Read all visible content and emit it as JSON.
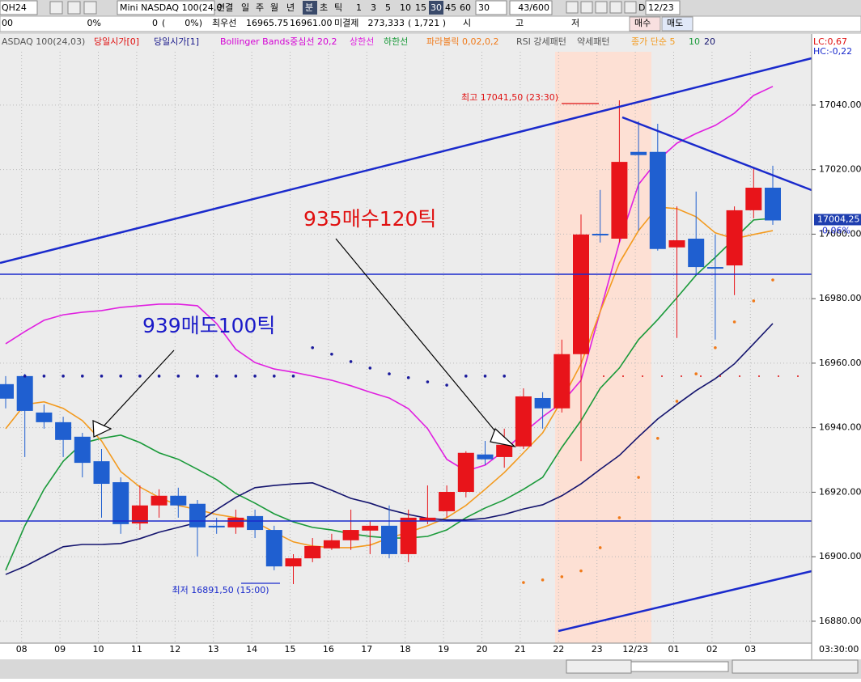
{
  "toolbar": {
    "symbol": "QH24",
    "name": "Mini NASDAQ 100(24.0",
    "periods": [
      "연결",
      "일",
      "주",
      "월",
      "년",
      "분",
      "초",
      "틱"
    ],
    "intervals": [
      "1",
      "3",
      "5",
      "10",
      "15",
      "30",
      "45",
      "60"
    ],
    "interval_input": "30",
    "count": "43/600",
    "d": "D",
    "date": "12/23",
    "quote": {
      "code": "00",
      "pct": "0%",
      "qty": "0",
      "paren": "(",
      "pct2": "0%)",
      "best_label": "최우선",
      "best_ask": "16965.75",
      "best_bid": "16961.00",
      "oi_label": "미결제",
      "oi": "273,333",
      "oi_change": "( 1,721 )",
      "open_label": "시",
      "high_label": "고",
      "low_label": "저",
      "buy": "매수",
      "sell": "매도"
    }
  },
  "chart_data": {
    "type": "candlestick",
    "instrument": "ASDAQ 100(24,03)",
    "legend_extra": [
      {
        "text": "당일시가[0]",
        "color": "#e01010"
      },
      {
        "text": "당일시가[1]",
        "color": "#1a1a8c"
      },
      {
        "text": "Bollinger Bands중심선 20,2",
        "color": "#d400d4"
      },
      {
        "text": "하한선",
        "color": "#1a9a3a"
      },
      {
        "text": "RSI 강세패턴",
        "color": "#555555"
      },
      {
        "text": "약세패턴",
        "color": "#555555"
      }
    ],
    "categories": [
      null,
      "08",
      null,
      "09",
      null,
      "10",
      null,
      "11",
      null,
      "12",
      null,
      "13",
      null,
      "14",
      null,
      "15",
      null,
      "16",
      null,
      "17",
      null,
      "18",
      null,
      "19",
      null,
      "20",
      null,
      "21",
      null,
      "22",
      null,
      "23",
      null,
      "12/23",
      null,
      "01",
      null,
      "02",
      null,
      "03",
      null
    ],
    "open": [
      16953.5,
      16956.0,
      16944.7,
      16941.7,
      16937.2,
      16929.6,
      16923.1,
      16910.3,
      16915.9,
      16918.9,
      16916.4,
      16909.6,
      16909.1,
      16912.6,
      16908.3,
      16897.0,
      16899.5,
      16902.6,
      16905.1,
      16908.1,
      16909.6,
      16900.8,
      16911.1,
      16914.1,
      16920.1,
      16931.7,
      16930.9,
      16934.2,
      16949.2,
      16946.0,
      16962.8,
      17000.1,
      16998.6,
      17025.5,
      17025.5,
      16995.9,
      16998.6,
      16989.8,
      16990.3,
      17007.4,
      17014.4
    ],
    "high": [
      16956.0,
      16956.7,
      16947.2,
      16943.4,
      16938.4,
      16933.4,
      16924.6,
      16922.1,
      16920.9,
      16921.4,
      16917.6,
      16912.1,
      16914.6,
      16914.6,
      16909.6,
      16900.8,
      16905.8,
      16907.1,
      16914.6,
      16910.9,
      16915.9,
      16914.6,
      16922.1,
      16922.1,
      16932.7,
      16935.9,
      16939.7,
      16952.2,
      16951.0,
      16967.3,
      17006.1,
      17013.7,
      17041.5,
      17035.0,
      17034.2,
      17008.6,
      17013.2,
      16999.9,
      17008.6,
      17020.4,
      17021.2
    ],
    "low": [
      16946.0,
      16930.9,
      16939.7,
      16930.9,
      16924.6,
      16912.1,
      16907.1,
      16908.3,
      16912.1,
      16912.1,
      16900.1,
      16907.1,
      16907.1,
      16905.8,
      16895.8,
      16891.5,
      16898.3,
      16902.1,
      16902.1,
      16900.8,
      16899.5,
      16898.3,
      16910.1,
      16912.1,
      16918.4,
      16928.4,
      16927.6,
      16933.4,
      16939.7,
      16944.7,
      16929.6,
      16997.4,
      16997.4,
      17001.1,
      16994.9,
      16967.8,
      16987.3,
      16967.3,
      16981.1,
      17004.9,
      17002.9
    ],
    "close": [
      16949.0,
      16945.2,
      16941.7,
      16936.2,
      16929.1,
      16922.6,
      16910.1,
      16915.9,
      16918.9,
      16915.9,
      16909.1,
      16909.1,
      16912.1,
      16908.3,
      16897.0,
      16899.5,
      16903.3,
      16905.1,
      16908.3,
      16909.6,
      16900.8,
      16912.1,
      16912.1,
      16920.1,
      16932.2,
      16930.2,
      16934.7,
      16949.7,
      16946.0,
      16962.8,
      16999.9,
      16999.6,
      17022.4,
      17024.5,
      16995.4,
      16998.1,
      16989.8,
      16989.3,
      17007.4,
      17014.4,
      17004.25
    ],
    "up_color": "#e8141a",
    "down_color": "#1f5fd0",
    "series": [
      {
        "name": "상한선",
        "color": "#e020e0",
        "values": [
          16966.0,
          16969.8,
          16973.3,
          16975.0,
          16975.8,
          16976.3,
          16977.3,
          16977.8,
          16978.3,
          16978.3,
          16977.8,
          16972.3,
          16964.3,
          16960.2,
          16958.2,
          16957.2,
          16956.0,
          16954.7,
          16953.0,
          16951.0,
          16949.2,
          16945.9,
          16939.7,
          16930.2,
          16926.6,
          16928.4,
          16932.9,
          16938.4,
          16943.4,
          16947.7,
          16954.7,
          16976.0,
          16997.4,
          17015.4,
          17022.9,
          17028.2,
          17031.2,
          17033.7,
          17037.5,
          17043.0,
          17045.8
        ]
      },
      {
        "name": "10",
        "color": "#1a9a3a",
        "values": [
          16895.8,
          16909.6,
          16920.9,
          16929.6,
          16935.2,
          16936.7,
          16937.7,
          16935.4,
          16932.2,
          16930.2,
          16927.1,
          16923.9,
          16919.6,
          16916.6,
          16913.3,
          16910.8,
          16909.1,
          16908.3,
          16907.1,
          16906.3,
          16905.8,
          16905.8,
          16906.3,
          16908.3,
          16912.1,
          16915.1,
          16917.6,
          16920.9,
          16924.6,
          16933.9,
          16942.2,
          16952.2,
          16958.5,
          16967.3,
          16973.5,
          16980.3,
          16987.3,
          16992.8,
          16998.6,
          17004.4,
          17004.9
        ]
      },
      {
        "name": "종가 단순 5",
        "color": "#f39a1e",
        "values": [
          16939.7,
          16947.2,
          16948.0,
          16946.0,
          16942.2,
          16935.9,
          16926.4,
          16921.6,
          16918.4,
          16915.9,
          16914.6,
          16913.1,
          16912.1,
          16910.8,
          16907.6,
          16904.6,
          16903.3,
          16902.8,
          16902.8,
          16903.6,
          16905.8,
          16907.6,
          16909.6,
          16912.1,
          16915.9,
          16920.9,
          16926.1,
          16932.2,
          16938.4,
          16948.5,
          16959.8,
          16976.0,
          16991.1,
          17001.1,
          17008.4,
          17007.9,
          17005.4,
          17000.4,
          16998.6,
          16999.9,
          17001.1
        ]
      },
      {
        "name": "20",
        "color": "#14146e",
        "values": [
          16894.5,
          16897.0,
          16900.1,
          16903.1,
          16903.8,
          16903.8,
          16904.1,
          16905.6,
          16907.6,
          16909.1,
          16910.6,
          16914.6,
          16918.4,
          16921.4,
          16922.1,
          16922.6,
          16922.9,
          16920.6,
          16918.1,
          16916.6,
          16914.6,
          16913.1,
          16911.9,
          16911.4,
          16911.4,
          16911.9,
          16913.1,
          16914.8,
          16916.1,
          16918.9,
          16922.6,
          16927.1,
          16931.4,
          16937.2,
          16942.7,
          16947.2,
          16951.5,
          16955.2,
          16959.8,
          16966.0,
          16972.3
        ]
      }
    ],
    "parabolic": {
      "name": "파라볼릭 0,02,0,2",
      "color": "#f07a1a",
      "color_above": "#1a1a9c",
      "values": [
        null,
        16956.0,
        16956.0,
        16956.0,
        16956.0,
        16956.0,
        16956.0,
        16956.0,
        16956.0,
        16956.0,
        16956.0,
        16956.0,
        16956.0,
        16956.0,
        16956.0,
        16956.0,
        16964.8,
        16962.8,
        16960.5,
        16958.5,
        16956.7,
        16955.5,
        16954.2,
        16953.2,
        16956.0,
        16956.0,
        16956.0,
        16892.0,
        16892.8,
        16893.8,
        16895.6,
        16902.8,
        16912.1,
        16924.6,
        16936.7,
        16948.2,
        16956.7,
        16964.8,
        16972.8,
        16979.3,
        16985.8
      ]
    },
    "ylim": [
      16873.2,
      17061.3
    ],
    "yticks": [
      {
        "value": 16880,
        "label": "16880.00"
      },
      {
        "value": 16900,
        "label": "16900.00"
      },
      {
        "value": 16920,
        "label": "16920.00"
      },
      {
        "value": 16940,
        "label": "16940.00"
      },
      {
        "value": 16960,
        "label": "16960.00"
      },
      {
        "value": 16980,
        "label": "16980.00"
      },
      {
        "value": 17000,
        "label": "17000.00"
      },
      {
        "value": 17020,
        "label": "17020.00"
      },
      {
        "value": 17040,
        "label": "17040.00"
      }
    ],
    "grid": true,
    "high_note": "최고 17041,50 (23:30)",
    "low_note": "최저 16891,50 (15:00)",
    "sell_note": "939매도100틱",
    "buy_note": "935매수120틱",
    "last_label": "17004,25",
    "last_change": "-0,06%",
    "lc": "LC:0,67",
    "hc": "HC:-0,22",
    "time": "03:30:00"
  }
}
